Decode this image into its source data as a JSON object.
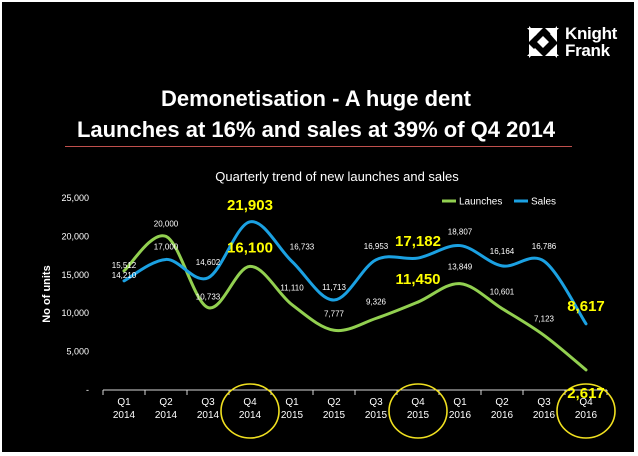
{
  "logo": {
    "line1": "Knight",
    "line2": "Frank"
  },
  "slide": {
    "title_line1": "Demonetisation - A huge dent",
    "title_line2": "Launches at 16% and sales at 39% of Q4 2014"
  },
  "colors": {
    "background": "#000000",
    "launches": "#92d050",
    "sales": "#1ba1e2",
    "highlight_text": "#ffff00",
    "highlight_circle": "#f0e020",
    "rule": "#c0504d"
  },
  "chart_data": {
    "type": "line",
    "title": "Quarterly trend of new launches and sales",
    "ylabel": "No of units",
    "xlabel": "",
    "ylim": [
      0,
      25000
    ],
    "yticks": [
      0,
      5000,
      10000,
      15000,
      20000,
      25000
    ],
    "ytick_labels": [
      "-",
      "5,000",
      "10,000",
      "15,000",
      "20,000",
      "25,000"
    ],
    "categories": [
      [
        "Q1",
        "2014"
      ],
      [
        "Q2",
        "2014"
      ],
      [
        "Q3",
        "2014"
      ],
      [
        "Q4",
        "2014"
      ],
      [
        "Q1",
        "2015"
      ],
      [
        "Q2",
        "2015"
      ],
      [
        "Q3",
        "2015"
      ],
      [
        "Q4",
        "2015"
      ],
      [
        "Q1",
        "2016"
      ],
      [
        "Q2",
        "2016"
      ],
      [
        "Q3",
        "2016"
      ],
      [
        "Q4",
        "2016"
      ]
    ],
    "highlighted_categories": [
      3,
      7,
      11
    ],
    "legend_position": "top-right",
    "series": [
      {
        "name": "Launches",
        "values": [
          15512,
          20000,
          10733,
          16100,
          11110,
          7777,
          9326,
          11450,
          13849,
          10601,
          7123,
          2617
        ],
        "labels": [
          "15,512",
          "20,000",
          "10,733",
          "16,100",
          "11,110",
          "7,777",
          "9,326",
          "11,450",
          "13,849",
          "10,601",
          "7,123",
          "2,617"
        ]
      },
      {
        "name": "Sales",
        "values": [
          14210,
          17000,
          14602,
          21903,
          16733,
          11713,
          16953,
          17182,
          18807,
          16164,
          16786,
          8617
        ],
        "labels": [
          "14,210",
          "17,000",
          "14,602",
          "21,903",
          "16,733",
          "11,713",
          "16,953",
          "17,182",
          "18,807",
          "16,164",
          "16,786",
          "8,617"
        ]
      }
    ]
  }
}
